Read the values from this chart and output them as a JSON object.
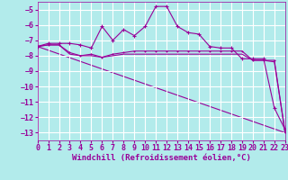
{
  "xlabel": "Windchill (Refroidissement éolien,°C)",
  "background_color": "#b2ebeb",
  "grid_color": "#cceeee",
  "line_color": "#990099",
  "xlim": [
    0,
    23
  ],
  "ylim": [
    -13.5,
    -4.5
  ],
  "yticks": [
    -13,
    -12,
    -11,
    -10,
    -9,
    -8,
    -7,
    -6,
    -5
  ],
  "xticks": [
    0,
    1,
    2,
    3,
    4,
    5,
    6,
    7,
    8,
    9,
    10,
    11,
    12,
    13,
    14,
    15,
    16,
    17,
    18,
    19,
    20,
    21,
    22,
    23
  ],
  "series1_x": [
    0,
    1,
    2,
    3,
    4,
    5,
    6,
    7,
    8,
    9,
    10,
    11,
    12,
    13,
    14,
    15,
    16,
    17,
    18,
    19,
    20,
    21,
    22,
    23
  ],
  "series1_y": [
    -7.4,
    -7.2,
    -7.2,
    -7.2,
    -7.3,
    -7.5,
    -6.1,
    -7.0,
    -6.3,
    -6.7,
    -6.1,
    -4.8,
    -4.8,
    -6.1,
    -6.5,
    -6.6,
    -7.4,
    -7.5,
    -7.5,
    -8.2,
    -8.2,
    -8.2,
    -11.4,
    -12.8
  ],
  "series2_x": [
    0,
    1,
    2,
    3,
    4,
    5,
    6,
    7,
    8,
    9,
    10,
    11,
    12,
    13,
    14,
    15,
    16,
    17,
    18,
    19,
    20,
    21,
    22,
    23
  ],
  "series2_y": [
    -7.4,
    -7.3,
    -7.3,
    -7.8,
    -8.0,
    -7.9,
    -8.1,
    -7.9,
    -7.8,
    -7.7,
    -7.7,
    -7.7,
    -7.7,
    -7.7,
    -7.7,
    -7.7,
    -7.7,
    -7.7,
    -7.7,
    -7.7,
    -8.3,
    -8.3,
    -8.3,
    -13.0
  ],
  "series3_x": [
    0,
    1,
    2,
    3,
    4,
    5,
    6,
    7,
    8,
    9,
    10,
    11,
    12,
    13,
    14,
    15,
    16,
    17,
    18,
    19,
    20,
    21,
    22,
    23
  ],
  "series3_y": [
    -7.4,
    -7.3,
    -7.3,
    -7.9,
    -8.0,
    -8.0,
    -8.1,
    -8.0,
    -7.9,
    -7.9,
    -7.9,
    -7.9,
    -7.9,
    -7.9,
    -7.9,
    -7.9,
    -7.9,
    -7.9,
    -7.9,
    -7.9,
    -8.3,
    -8.3,
    -8.4,
    -13.0
  ],
  "series4_x": [
    0,
    23
  ],
  "series4_y": [
    -7.4,
    -13.0
  ],
  "xlabel_fontsize": 6.5,
  "tick_fontsize": 6.0
}
